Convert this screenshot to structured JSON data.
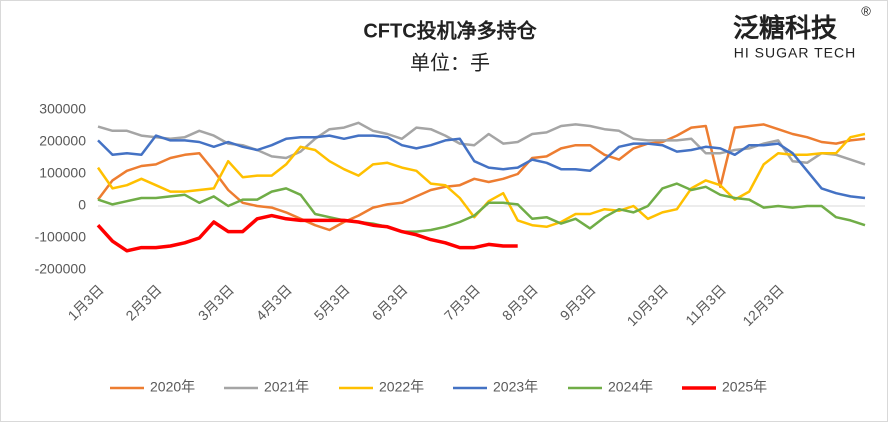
{
  "chart_data": {
    "type": "line",
    "title": "CFTC投机净多持仓",
    "subtitle": "单位：手",
    "logo": {
      "name": "泛糖科技",
      "mark": "®",
      "tagline": "HI SUGAR TECH"
    },
    "categories": [
      "1月3日",
      null,
      null,
      null,
      "2月3日",
      null,
      null,
      null,
      null,
      "3月3日",
      null,
      null,
      null,
      "4月3日",
      null,
      null,
      null,
      "5月3日",
      null,
      null,
      null,
      "6月3日",
      null,
      null,
      null,
      null,
      "7月3日",
      null,
      null,
      null,
      "8月3日",
      null,
      null,
      null,
      "9月3日",
      null,
      null,
      null,
      null,
      "10月3日",
      null,
      null,
      null,
      "11月3日",
      null,
      null,
      null,
      "12月3日",
      null,
      null,
      null,
      null,
      null,
      null
    ],
    "ylim": [
      -200000,
      300000
    ],
    "yticks": [
      -200000,
      -100000,
      0,
      100000,
      200000,
      300000
    ],
    "grid": false,
    "legend": "bottom",
    "series": [
      {
        "name": "2020年",
        "color": "#ed7d31",
        "values": [
          20000,
          80000,
          110000,
          125000,
          130000,
          150000,
          160000,
          165000,
          110000,
          50000,
          10000,
          0,
          -5000,
          -20000,
          -40000,
          -60000,
          -75000,
          -50000,
          -30000,
          -5000,
          5000,
          10000,
          30000,
          50000,
          60000,
          65000,
          85000,
          75000,
          85000,
          100000,
          150000,
          155000,
          180000,
          190000,
          190000,
          160000,
          145000,
          180000,
          195000,
          200000,
          220000,
          245000,
          250000,
          60000,
          245000,
          250000,
          255000,
          240000,
          225000,
          215000,
          200000,
          195000,
          205000,
          210000
        ]
      },
      {
        "name": "2021年",
        "color": "#a5a5a5",
        "values": [
          248000,
          235000,
          235000,
          220000,
          215000,
          210000,
          215000,
          235000,
          220000,
          195000,
          190000,
          175000,
          155000,
          150000,
          170000,
          210000,
          240000,
          245000,
          260000,
          235000,
          225000,
          210000,
          245000,
          240000,
          220000,
          195000,
          190000,
          225000,
          195000,
          200000,
          225000,
          230000,
          250000,
          255000,
          250000,
          240000,
          235000,
          210000,
          205000,
          205000,
          205000,
          210000,
          165000,
          165000,
          175000,
          180000,
          195000,
          205000,
          140000,
          135000,
          165000,
          160000,
          145000,
          130000
        ]
      },
      {
        "name": "2022年",
        "color": "#ffc000",
        "values": [
          120000,
          55000,
          65000,
          85000,
          65000,
          45000,
          45000,
          50000,
          55000,
          140000,
          90000,
          95000,
          95000,
          130000,
          185000,
          175000,
          140000,
          115000,
          95000,
          130000,
          135000,
          120000,
          110000,
          70000,
          65000,
          25000,
          -35000,
          15000,
          40000,
          -45000,
          -60000,
          -65000,
          -50000,
          -25000,
          -25000,
          -10000,
          -15000,
          0,
          -40000,
          -20000,
          -10000,
          55000,
          80000,
          65000,
          20000,
          45000,
          130000,
          165000,
          160000,
          160000,
          165000,
          165000,
          215000,
          225000
        ]
      },
      {
        "name": "2023年",
        "color": "#4472c4",
        "values": [
          205000,
          160000,
          165000,
          160000,
          220000,
          205000,
          205000,
          200000,
          185000,
          200000,
          185000,
          175000,
          190000,
          210000,
          215000,
          215000,
          220000,
          210000,
          220000,
          220000,
          215000,
          190000,
          180000,
          190000,
          205000,
          210000,
          140000,
          120000,
          115000,
          120000,
          145000,
          135000,
          115000,
          115000,
          110000,
          145000,
          185000,
          195000,
          195000,
          190000,
          170000,
          175000,
          185000,
          180000,
          160000,
          190000,
          190000,
          195000,
          165000,
          110000,
          55000,
          40000,
          30000,
          25000
        ]
      },
      {
        "name": "2024年",
        "color": "#70ad47",
        "values": [
          20000,
          5000,
          15000,
          25000,
          25000,
          30000,
          35000,
          10000,
          30000,
          0,
          20000,
          20000,
          45000,
          55000,
          35000,
          -25000,
          -35000,
          -45000,
          -50000,
          -55000,
          -65000,
          -80000,
          -80000,
          -75000,
          -65000,
          -50000,
          -30000,
          10000,
          10000,
          5000,
          -40000,
          -35000,
          -55000,
          -40000,
          -70000,
          -35000,
          -10000,
          -20000,
          0,
          55000,
          70000,
          50000,
          60000,
          35000,
          25000,
          20000,
          -5000,
          0,
          -5000,
          0,
          0,
          -35000,
          -45000,
          -60000
        ]
      },
      {
        "name": "2025年",
        "color": "#ff0000",
        "values": [
          -60000,
          -110000,
          -140000,
          -130000,
          -130000,
          -125000,
          -115000,
          -100000,
          -50000,
          -80000,
          -80000,
          -40000,
          -30000,
          -40000,
          -45000,
          -45000,
          -45000,
          -45000,
          -50000,
          -60000,
          -65000,
          -80000,
          -90000,
          -105000,
          -115000,
          -130000,
          -130000,
          -120000,
          -125000,
          -125000,
          null,
          null,
          null,
          null,
          null,
          null,
          null,
          null,
          null,
          null,
          null,
          null,
          null,
          null,
          null,
          null,
          null,
          null,
          null,
          null,
          null,
          null,
          null,
          null
        ]
      }
    ]
  }
}
